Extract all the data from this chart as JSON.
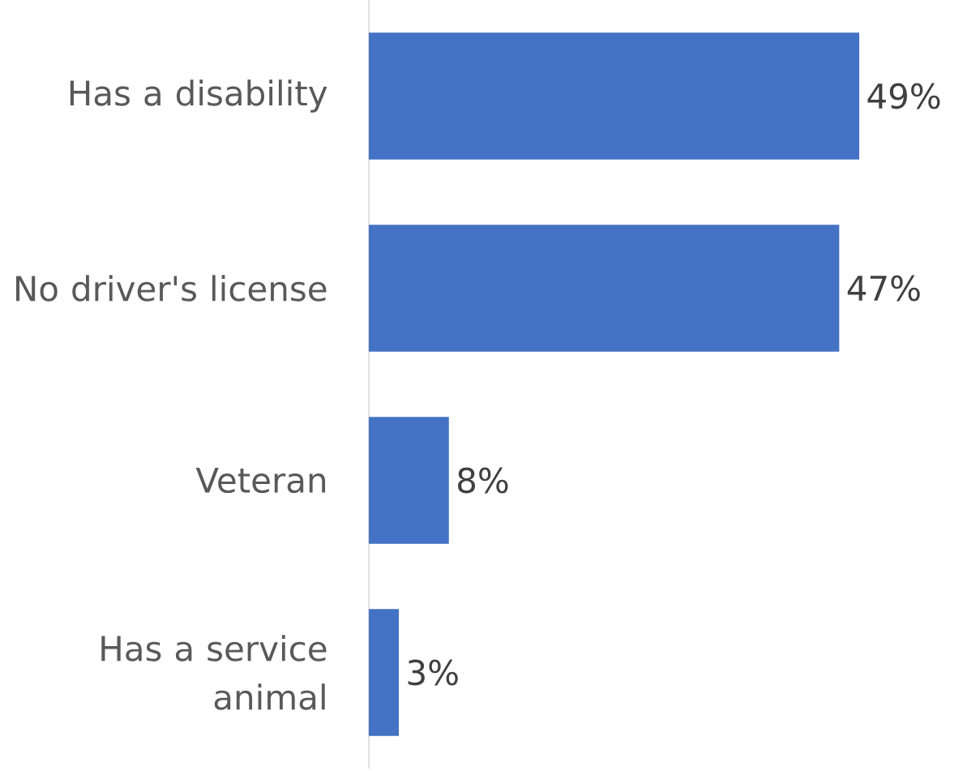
{
  "chart_data": {
    "type": "bar",
    "orientation": "horizontal",
    "categories": [
      "Has a disability",
      "No driver's license",
      "Veteran",
      "Has a service animal"
    ],
    "values": [
      49,
      47,
      8,
      3
    ],
    "value_labels": [
      "49%",
      "47%",
      "8%",
      "3%"
    ],
    "color": "#4472c4"
  }
}
